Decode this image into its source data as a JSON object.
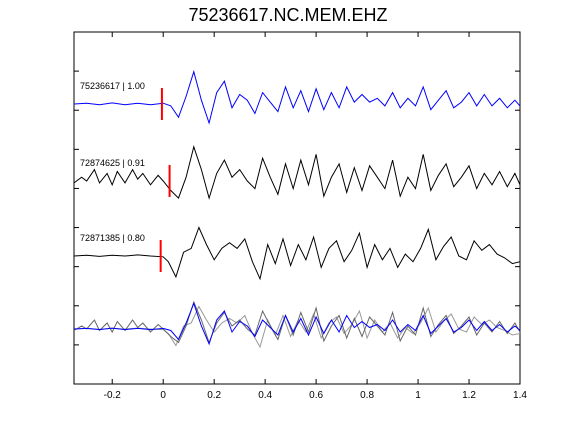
{
  "chart_data": {
    "type": "line",
    "title": "75236617.NC.MEM.EHZ",
    "xlabel": "",
    "ylabel": "",
    "xlim": [
      -0.35,
      1.4
    ],
    "x_ticks": [
      -0.2,
      0,
      0.2,
      0.4,
      0.6,
      0.8,
      1,
      1.2,
      1.4
    ],
    "x_tick_labels": [
      "-0.2",
      "0",
      "0.2",
      "0.4",
      "0.6",
      "0.8",
      "1",
      "1.2",
      "1.4"
    ],
    "grid": false,
    "pick_time": 0,
    "traces": [
      {
        "label": "75236617 | 1.00",
        "color": "#0000ff",
        "pick": -0.005,
        "points": [
          [
            -0.35,
            0
          ],
          [
            -0.3,
            0.02
          ],
          [
            -0.25,
            -0.02
          ],
          [
            -0.2,
            0.03
          ],
          [
            -0.15,
            -0.02
          ],
          [
            -0.1,
            0.02
          ],
          [
            -0.05,
            -0.02
          ],
          [
            0,
            0.02
          ],
          [
            0.03,
            -0.05
          ],
          [
            0.06,
            -0.35
          ],
          [
            0.09,
            0.2
          ],
          [
            0.12,
            0.85
          ],
          [
            0.15,
            0.1
          ],
          [
            0.18,
            -0.5
          ],
          [
            0.21,
            0.3
          ],
          [
            0.24,
            0.6
          ],
          [
            0.27,
            -0.1
          ],
          [
            0.3,
            0.25
          ],
          [
            0.33,
            0.1
          ],
          [
            0.36,
            -0.25
          ],
          [
            0.39,
            0.3
          ],
          [
            0.42,
            0.05
          ],
          [
            0.45,
            -0.2
          ],
          [
            0.48,
            0.45
          ],
          [
            0.51,
            -0.1
          ],
          [
            0.54,
            0.35
          ],
          [
            0.57,
            -0.2
          ],
          [
            0.6,
            0.4
          ],
          [
            0.63,
            -0.15
          ],
          [
            0.66,
            0.3
          ],
          [
            0.69,
            -0.1
          ],
          [
            0.72,
            0.45
          ],
          [
            0.75,
            0.05
          ],
          [
            0.78,
            0.25
          ],
          [
            0.81,
            0.05
          ],
          [
            0.84,
            0.15
          ],
          [
            0.87,
            -0.05
          ],
          [
            0.9,
            0.3
          ],
          [
            0.93,
            -0.1
          ],
          [
            0.96,
            0.15
          ],
          [
            0.99,
            -0.05
          ],
          [
            1.02,
            0.45
          ],
          [
            1.05,
            -0.15
          ],
          [
            1.08,
            0.1
          ],
          [
            1.11,
            0.35
          ],
          [
            1.14,
            -0.1
          ],
          [
            1.17,
            0.05
          ],
          [
            1.2,
            0.3
          ],
          [
            1.23,
            -0.05
          ],
          [
            1.26,
            0.25
          ],
          [
            1.29,
            -0.05
          ],
          [
            1.32,
            0.15
          ],
          [
            1.35,
            -0.1
          ],
          [
            1.38,
            0.1
          ],
          [
            1.4,
            -0.05
          ]
        ]
      },
      {
        "label": "72874625 | 0.91",
        "color": "#000000",
        "pick": 0.025,
        "points": [
          [
            -0.35,
            -0.05
          ],
          [
            -0.32,
            0.1
          ],
          [
            -0.3,
            0
          ],
          [
            -0.27,
            0.3
          ],
          [
            -0.25,
            -0.05
          ],
          [
            -0.22,
            0.2
          ],
          [
            -0.2,
            -0.1
          ],
          [
            -0.18,
            0.25
          ],
          [
            -0.15,
            -0.05
          ],
          [
            -0.12,
            0.3
          ],
          [
            -0.1,
            0.05
          ],
          [
            -0.08,
            0.2
          ],
          [
            -0.05,
            -0.1
          ],
          [
            -0.02,
            0.15
          ],
          [
            0,
            0
          ],
          [
            0.03,
            -0.25
          ],
          [
            0.06,
            -0.45
          ],
          [
            0.09,
            0.1
          ],
          [
            0.12,
            0.9
          ],
          [
            0.15,
            0.3
          ],
          [
            0.18,
            -0.45
          ],
          [
            0.21,
            0.2
          ],
          [
            0.24,
            0.55
          ],
          [
            0.27,
            0.1
          ],
          [
            0.3,
            0.3
          ],
          [
            0.33,
            0
          ],
          [
            0.36,
            -0.2
          ],
          [
            0.39,
            0.6
          ],
          [
            0.42,
            0.1
          ],
          [
            0.45,
            -0.35
          ],
          [
            0.48,
            0.45
          ],
          [
            0.51,
            -0.2
          ],
          [
            0.54,
            0.55
          ],
          [
            0.57,
            -0.1
          ],
          [
            0.6,
            0.7
          ],
          [
            0.63,
            -0.4
          ],
          [
            0.66,
            0.1
          ],
          [
            0.69,
            0.45
          ],
          [
            0.72,
            -0.3
          ],
          [
            0.75,
            0.35
          ],
          [
            0.78,
            -0.25
          ],
          [
            0.81,
            0.4
          ],
          [
            0.84,
            0.1
          ],
          [
            0.87,
            -0.2
          ],
          [
            0.9,
            0.55
          ],
          [
            0.93,
            -0.4
          ],
          [
            0.96,
            0.1
          ],
          [
            0.99,
            -0.2
          ],
          [
            1.02,
            0.7
          ],
          [
            1.05,
            -0.25
          ],
          [
            1.08,
            0.15
          ],
          [
            1.11,
            0.45
          ],
          [
            1.14,
            -0.15
          ],
          [
            1.17,
            0.1
          ],
          [
            1.2,
            0.4
          ],
          [
            1.23,
            -0.2
          ],
          [
            1.26,
            0.2
          ],
          [
            1.29,
            -0.1
          ],
          [
            1.32,
            0.25
          ],
          [
            1.35,
            -0.15
          ],
          [
            1.38,
            0.2
          ],
          [
            1.4,
            -0.1
          ]
        ]
      },
      {
        "label": "72871385 | 0.80",
        "color": "#000000",
        "pick": -0.01,
        "points": [
          [
            -0.35,
            0
          ],
          [
            -0.3,
            0.02
          ],
          [
            -0.25,
            -0.01
          ],
          [
            -0.2,
            0.02
          ],
          [
            -0.15,
            0
          ],
          [
            -0.1,
            0.03
          ],
          [
            -0.05,
            0
          ],
          [
            0,
            -0.02
          ],
          [
            0.02,
            -0.15
          ],
          [
            0.05,
            -0.55
          ],
          [
            0.08,
            0.1
          ],
          [
            0.11,
            0.2
          ],
          [
            0.14,
            0.75
          ],
          [
            0.17,
            0.3
          ],
          [
            0.2,
            -0.1
          ],
          [
            0.23,
            0.2
          ],
          [
            0.26,
            0.35
          ],
          [
            0.29,
            0.2
          ],
          [
            0.32,
            0.45
          ],
          [
            0.35,
            -0.15
          ],
          [
            0.38,
            -0.6
          ],
          [
            0.41,
            0.3
          ],
          [
            0.44,
            -0.2
          ],
          [
            0.47,
            0.45
          ],
          [
            0.5,
            -0.25
          ],
          [
            0.53,
            0.3
          ],
          [
            0.56,
            -0.1
          ],
          [
            0.59,
            0.5
          ],
          [
            0.62,
            -0.3
          ],
          [
            0.65,
            0.2
          ],
          [
            0.68,
            0.4
          ],
          [
            0.71,
            -0.15
          ],
          [
            0.74,
            0.15
          ],
          [
            0.77,
            0.6
          ],
          [
            0.8,
            -0.3
          ],
          [
            0.83,
            0.3
          ],
          [
            0.86,
            -0.1
          ],
          [
            0.89,
            0.2
          ],
          [
            0.92,
            -0.3
          ],
          [
            0.95,
            0.05
          ],
          [
            0.98,
            -0.15
          ],
          [
            1.01,
            0.2
          ],
          [
            1.04,
            0.7
          ],
          [
            1.07,
            -0.1
          ],
          [
            1.1,
            0.25
          ],
          [
            1.13,
            0.5
          ],
          [
            1.16,
            0
          ],
          [
            1.19,
            -0.1
          ],
          [
            1.22,
            0.4
          ],
          [
            1.25,
            0.15
          ],
          [
            1.28,
            0.3
          ],
          [
            1.31,
            0.05
          ],
          [
            1.34,
            -0.05
          ],
          [
            1.37,
            -0.2
          ],
          [
            1.4,
            -0.15
          ]
        ]
      }
    ],
    "overlay_colors": [
      "#0000ff",
      "#666666",
      "#999999"
    ]
  }
}
